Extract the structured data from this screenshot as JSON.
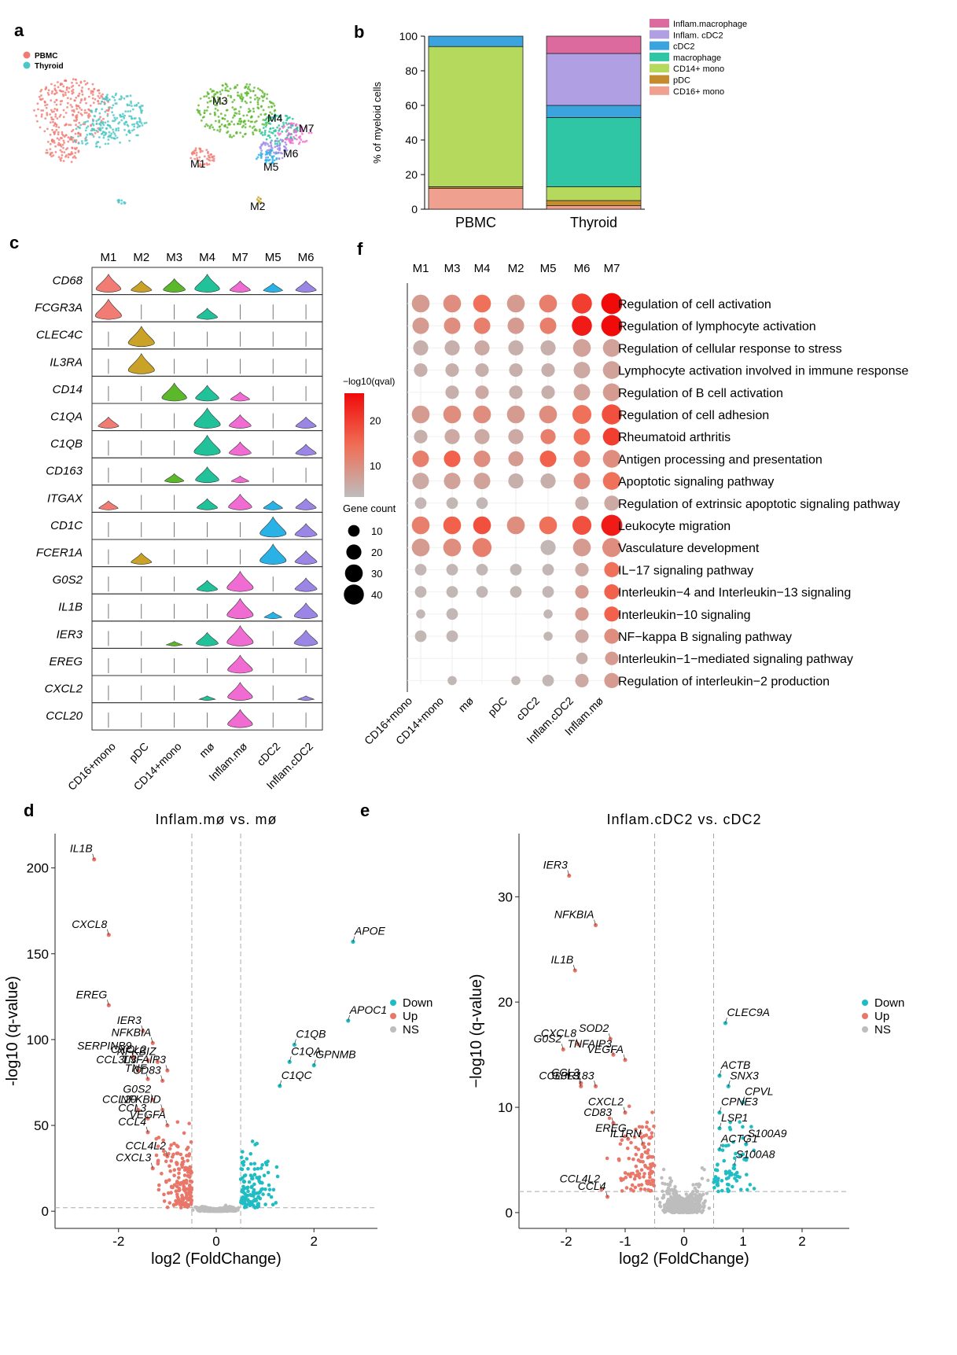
{
  "panel_labels": [
    "a",
    "b",
    "c",
    "d",
    "e",
    "f"
  ],
  "colors": {
    "PBMC": "#f07c73",
    "Thyroid": "#4cc6c6",
    "M1": "#f07c73",
    "M2": "#c9a227",
    "M3": "#5cb82b",
    "M4": "#21c29a",
    "M5": "#2ab2e6",
    "M6": "#9b86e6",
    "M7": "#f06bd2",
    "up": "#e8776a",
    "down": "#1fbcc3",
    "ns": "#bdbdbd"
  },
  "panel_a": {
    "legend": [
      "PBMC",
      "Thyroid"
    ],
    "clusters": [
      "M1",
      "M2",
      "M3",
      "M4",
      "M5",
      "M6",
      "M7"
    ]
  },
  "chart_data": [
    {
      "type": "bar",
      "panel": "b",
      "ylabel": "% of myeloid cells",
      "ylim": [
        0,
        100
      ],
      "yticks": [
        0,
        20,
        40,
        60,
        80,
        100
      ],
      "categories": [
        "PBMC",
        "Thyroid"
      ],
      "series": [
        {
          "name": "CD16+ mono",
          "color": "#f0a08f",
          "values": [
            12,
            2
          ]
        },
        {
          "name": "pDC",
          "color": "#c48c2c",
          "values": [
            1,
            3
          ]
        },
        {
          "name": "CD14+ mono",
          "color": "#b4d95c",
          "values": [
            81,
            8
          ]
        },
        {
          "name": "macrophage",
          "color": "#2ec6a4",
          "values": [
            0,
            40
          ]
        },
        {
          "name": "cDC2",
          "color": "#3ba4de",
          "values": [
            6,
            7
          ]
        },
        {
          "name": "Inflam. cDC2",
          "color": "#b19fe3",
          "values": [
            0,
            30
          ]
        },
        {
          "name": "Inflam.macrophage",
          "color": "#dd6a9f",
          "values": [
            0,
            10
          ]
        }
      ]
    },
    {
      "type": "violin",
      "panel": "c",
      "columns": [
        "M1",
        "M2",
        "M3",
        "M4",
        "M7",
        "M5",
        "M6"
      ],
      "column_colors": [
        "#f07c73",
        "#c9a227",
        "#5cb82b",
        "#21c29a",
        "#f06bd2",
        "#2ab2e6",
        "#9b86e6"
      ],
      "xlabels": [
        "CD16+mono",
        "pDC",
        "CD14+mono",
        "mø",
        "Inflam.mø",
        "cDC2",
        "Inflam.cDC2"
      ],
      "genes": [
        "CD68",
        "FCGR3A",
        "CLEC4C",
        "IL3RA",
        "CD14",
        "C1QA",
        "C1QB",
        "CD163",
        "ITGAX",
        "CD1C",
        "FCER1A",
        "G0S2",
        "IL1B",
        "IER3",
        "EREG",
        "CXCL2",
        "CCL20"
      ],
      "expression": [
        [
          0.8,
          0.5,
          0.6,
          0.8,
          0.5,
          0.4,
          0.5
        ],
        [
          0.9,
          0,
          0,
          0.5,
          0,
          0,
          0
        ],
        [
          0,
          0.9,
          0,
          0,
          0,
          0,
          0
        ],
        [
          0,
          0.9,
          0,
          0,
          0,
          0,
          0
        ],
        [
          0,
          0,
          0.8,
          0.7,
          0.4,
          0,
          0
        ],
        [
          0.5,
          0,
          0,
          0.9,
          0.6,
          0,
          0.5
        ],
        [
          0,
          0,
          0,
          0.9,
          0.6,
          0,
          0.5
        ],
        [
          0,
          0,
          0.4,
          0.7,
          0.3,
          0,
          0
        ],
        [
          0.4,
          0,
          0,
          0.5,
          0.7,
          0.4,
          0.5
        ],
        [
          0,
          0,
          0,
          0,
          0,
          0.9,
          0.6
        ],
        [
          0,
          0.5,
          0,
          0,
          0,
          0.9,
          0.6
        ],
        [
          0,
          0,
          0,
          0.5,
          0.9,
          0,
          0.6
        ],
        [
          0,
          0,
          0,
          0,
          0.9,
          0.3,
          0.7
        ],
        [
          0,
          0,
          0.2,
          0.6,
          0.9,
          0,
          0.7
        ],
        [
          0,
          0,
          0,
          0,
          0.8,
          0,
          0
        ],
        [
          0,
          0,
          0,
          0.2,
          0.8,
          0,
          0.2
        ],
        [
          0,
          0,
          0,
          0,
          0.8,
          0,
          0
        ]
      ]
    },
    {
      "type": "scatter",
      "panel": "f",
      "columns": [
        "M1",
        "M3",
        "M4",
        "M2",
        "M5",
        "M6",
        "M7"
      ],
      "xlabels": [
        "CD16+mono",
        "CD14+mono",
        "mø",
        "pDC",
        "cDC2",
        "Inflam.cDC2",
        "Inflam.mø"
      ],
      "pathways": [
        "Regulation of cell activation",
        "Regulation of lymphocyte activation",
        "Regulation of cellular response to stress",
        "Lymphocyte activation involved in immune response",
        "Regulation of B cell activation",
        "Regulation of cell adhesion",
        "Rheumatoid arthritis",
        "Antigen processing and presentation",
        "Apoptotic signaling pathway",
        "Regulation of extrinsic apoptotic signaling pathway",
        "Leukocyte migration",
        "Vasculature development",
        "IL−17 signaling pathway",
        "Interleukin−4 and Interleukin−13 signaling",
        "Interleukin−10 signaling",
        "NF−kappa B signaling pathway",
        "Interleukin−1−mediated signaling pathway",
        "Regulation of interleukin−2 production"
      ],
      "count": [
        [
          30,
          30,
          30,
          30,
          30,
          40,
          45
        ],
        [
          25,
          25,
          25,
          25,
          25,
          40,
          45
        ],
        [
          20,
          20,
          20,
          20,
          20,
          30,
          30
        ],
        [
          15,
          15,
          15,
          15,
          15,
          25,
          30
        ],
        [
          0,
          15,
          15,
          15,
          15,
          25,
          30
        ],
        [
          30,
          30,
          30,
          30,
          30,
          35,
          40
        ],
        [
          15,
          20,
          20,
          20,
          20,
          25,
          30
        ],
        [
          25,
          25,
          25,
          20,
          25,
          25,
          30
        ],
        [
          25,
          25,
          25,
          20,
          20,
          25,
          30
        ],
        [
          10,
          10,
          10,
          0,
          0,
          15,
          20
        ],
        [
          30,
          30,
          30,
          30,
          30,
          35,
          45
        ],
        [
          30,
          30,
          35,
          0,
          20,
          30,
          35
        ],
        [
          10,
          10,
          10,
          10,
          10,
          15,
          20
        ],
        [
          10,
          10,
          10,
          10,
          10,
          15,
          20
        ],
        [
          5,
          10,
          0,
          0,
          5,
          15,
          20
        ],
        [
          10,
          10,
          0,
          0,
          5,
          15,
          20
        ],
        [
          0,
          0,
          0,
          0,
          0,
          10,
          15
        ],
        [
          0,
          5,
          0,
          5,
          10,
          15,
          20
        ]
      ],
      "qval": [
        [
          8,
          10,
          14,
          8,
          12,
          20,
          26
        ],
        [
          8,
          10,
          12,
          8,
          12,
          24,
          26
        ],
        [
          5,
          5,
          6,
          5,
          5,
          7,
          7
        ],
        [
          5,
          5,
          5,
          5,
          5,
          6,
          7
        ],
        [
          0,
          5,
          6,
          5,
          5,
          7,
          8
        ],
        [
          8,
          10,
          10,
          8,
          10,
          14,
          18
        ],
        [
          5,
          6,
          6,
          6,
          12,
          14,
          20
        ],
        [
          12,
          16,
          10,
          8,
          16,
          12,
          10
        ],
        [
          6,
          7,
          7,
          5,
          5,
          10,
          14
        ],
        [
          4,
          4,
          4,
          0,
          0,
          5,
          6
        ],
        [
          12,
          16,
          18,
          10,
          14,
          18,
          24
        ],
        [
          8,
          10,
          12,
          0,
          4,
          8,
          10
        ],
        [
          4,
          4,
          4,
          4,
          4,
          6,
          14
        ],
        [
          4,
          4,
          4,
          4,
          4,
          8,
          16
        ],
        [
          4,
          4,
          0,
          0,
          4,
          8,
          16
        ],
        [
          4,
          4,
          0,
          0,
          4,
          6,
          10
        ],
        [
          0,
          0,
          0,
          0,
          0,
          5,
          8
        ],
        [
          0,
          4,
          0,
          4,
          4,
          6,
          8
        ]
      ],
      "legend_title": "−log10(qval)",
      "color_ticks": [
        10,
        20
      ],
      "size_title": "Gene count",
      "size_ticks": [
        10,
        20,
        30,
        40
      ]
    },
    {
      "type": "scatter",
      "panel": "d",
      "title": "Inflam.mø vs. mø",
      "xlabel": "log2 (FoldChange)",
      "ylabel": "-log10 (q-value)",
      "xlim": [
        -3.3,
        3.3
      ],
      "ylim": [
        -10,
        220
      ],
      "xticks": [
        -2,
        0,
        2
      ],
      "yticks": [
        0,
        50,
        100,
        150,
        200
      ],
      "legend": [
        "Down",
        "Up",
        "NS"
      ],
      "labeled_points": [
        {
          "label": "IL1B",
          "x": -2.5,
          "y": 205,
          "g": "up"
        },
        {
          "label": "CXCL8",
          "x": -2.2,
          "y": 161,
          "g": "up"
        },
        {
          "label": "EREG",
          "x": -2.2,
          "y": 120,
          "g": "up"
        },
        {
          "label": "IER3",
          "x": -1.5,
          "y": 105,
          "g": "up"
        },
        {
          "label": "NFKBIA",
          "x": -1.3,
          "y": 98,
          "g": "up"
        },
        {
          "label": "SERPINB9",
          "x": -1.7,
          "y": 90,
          "g": "up"
        },
        {
          "label": "CXCL2",
          "x": -1.4,
          "y": 88,
          "g": "up"
        },
        {
          "label": "NFKBIZ",
          "x": -1.2,
          "y": 87,
          "g": "up"
        },
        {
          "label": "TNFAIP3",
          "x": -1.0,
          "y": 82,
          "g": "up"
        },
        {
          "label": "CCL3L3",
          "x": -1.6,
          "y": 82,
          "g": "up"
        },
        {
          "label": "TNF",
          "x": -1.4,
          "y": 77,
          "g": "up"
        },
        {
          "label": "CD83",
          "x": -1.1,
          "y": 76,
          "g": "up"
        },
        {
          "label": "G0S2",
          "x": -1.3,
          "y": 65,
          "g": "up"
        },
        {
          "label": "CCL20",
          "x": -1.6,
          "y": 59,
          "g": "up"
        },
        {
          "label": "NFKBID",
          "x": -1.1,
          "y": 59,
          "g": "up"
        },
        {
          "label": "CCL3",
          "x": -1.4,
          "y": 54,
          "g": "up"
        },
        {
          "label": "CCL4",
          "x": -1.4,
          "y": 46,
          "g": "up"
        },
        {
          "label": "VEGFA",
          "x": -1.0,
          "y": 50,
          "g": "up"
        },
        {
          "label": "CCL4L2",
          "x": -1.0,
          "y": 32,
          "g": "up"
        },
        {
          "label": "CXCL3",
          "x": -1.3,
          "y": 25,
          "g": "up"
        },
        {
          "label": "APOE",
          "x": 2.8,
          "y": 157,
          "g": "down"
        },
        {
          "label": "APOC1",
          "x": 2.7,
          "y": 111,
          "g": "down"
        },
        {
          "label": "C1QB",
          "x": 1.6,
          "y": 97,
          "g": "down"
        },
        {
          "label": "C1QA",
          "x": 1.5,
          "y": 87,
          "g": "down"
        },
        {
          "label": "GPNMB",
          "x": 2.0,
          "y": 85,
          "g": "down"
        },
        {
          "label": "C1QC",
          "x": 1.3,
          "y": 73,
          "g": "down"
        }
      ]
    },
    {
      "type": "scatter",
      "panel": "e",
      "title": "Inflam.cDC2 vs. cDC2",
      "xlabel": "log2 (FoldChange)",
      "ylabel": "−log10 (q-value)",
      "xlim": [
        -2.8,
        2.8
      ],
      "ylim": [
        -1.5,
        36
      ],
      "xticks": [
        -2,
        -1,
        0,
        1,
        2
      ],
      "yticks": [
        0,
        10,
        20,
        30
      ],
      "legend": [
        "Down",
        "Up",
        "NS"
      ],
      "labeled_points": [
        {
          "label": "IER3",
          "x": -1.95,
          "y": 32,
          "g": "up"
        },
        {
          "label": "NFKBIA",
          "x": -1.5,
          "y": 27.3,
          "g": "up"
        },
        {
          "label": "IL1B",
          "x": -1.85,
          "y": 23,
          "g": "up"
        },
        {
          "label": "SOD2",
          "x": -1.25,
          "y": 16.5,
          "g": "up"
        },
        {
          "label": "CXCL8",
          "x": -1.8,
          "y": 16,
          "g": "up"
        },
        {
          "label": "G0S2",
          "x": -2.05,
          "y": 15.5,
          "g": "up"
        },
        {
          "label": "TNFAIP3",
          "x": -1.2,
          "y": 15,
          "g": "up"
        },
        {
          "label": "VEGFA",
          "x": -1.0,
          "y": 14.5,
          "g": "up"
        },
        {
          "label": "CCL3",
          "x": -1.75,
          "y": 12.3,
          "g": "up"
        },
        {
          "label": "CCL3L3",
          "x": -1.75,
          "y": 12,
          "g": "up"
        },
        {
          "label": "GPR183",
          "x": -1.5,
          "y": 12,
          "g": "up"
        },
        {
          "label": "CXCL2",
          "x": -1.0,
          "y": 9.5,
          "g": "up"
        },
        {
          "label": "CD83",
          "x": -1.2,
          "y": 8.5,
          "g": "up"
        },
        {
          "label": "EREG",
          "x": -0.95,
          "y": 7,
          "g": "up"
        },
        {
          "label": "IL1RN",
          "x": -0.7,
          "y": 6.5,
          "g": "up"
        },
        {
          "label": "CCL4L2",
          "x": -1.4,
          "y": 2.2,
          "g": "up"
        },
        {
          "label": "CCL4",
          "x": -1.3,
          "y": 1.5,
          "g": "up"
        },
        {
          "label": "CLEC9A",
          "x": 0.7,
          "y": 18,
          "g": "down"
        },
        {
          "label": "ACTB",
          "x": 0.6,
          "y": 13,
          "g": "down"
        },
        {
          "label": "SNX3",
          "x": 0.75,
          "y": 12,
          "g": "down"
        },
        {
          "label": "CPVL",
          "x": 1.0,
          "y": 10.5,
          "g": "down"
        },
        {
          "label": "CPNE3",
          "x": 0.6,
          "y": 9.5,
          "g": "down"
        },
        {
          "label": "LSP1",
          "x": 0.6,
          "y": 8,
          "g": "down"
        },
        {
          "label": "S100A9",
          "x": 1.05,
          "y": 6.5,
          "g": "down"
        },
        {
          "label": "ACTG1",
          "x": 0.6,
          "y": 6,
          "g": "down"
        },
        {
          "label": "S100A8",
          "x": 0.85,
          "y": 4.5,
          "g": "down"
        }
      ]
    }
  ]
}
